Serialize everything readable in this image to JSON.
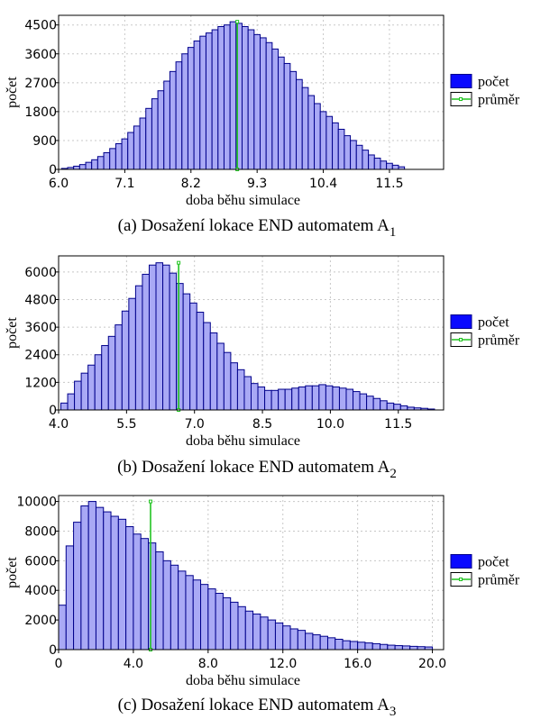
{
  "figures": [
    {
      "caption_prefix": "(a) Dosažení lokace END automatem A",
      "caption_sub": "1",
      "chart_data": {
        "type": "bar",
        "xlabel": "doba běhu simulace",
        "ylabel": "počet",
        "xlim": [
          6.0,
          12.4
        ],
        "ylim": [
          0,
          4800
        ],
        "xticks": [
          "6.0",
          "7.1",
          "8.2",
          "9.3",
          "10.4",
          "11.5"
        ],
        "yticks": [
          "0",
          "900",
          "1800",
          "2700",
          "3600",
          "4500"
        ],
        "bin_start": 6.05,
        "bin_width": 0.1,
        "values": [
          30,
          60,
          100,
          150,
          220,
          300,
          400,
          520,
          650,
          800,
          950,
          1150,
          1350,
          1600,
          1900,
          2200,
          2450,
          2750,
          3050,
          3350,
          3600,
          3800,
          4000,
          4150,
          4250,
          4350,
          4450,
          4500,
          4600,
          4550,
          4450,
          4350,
          4200,
          4100,
          3950,
          3750,
          3500,
          3300,
          3050,
          2800,
          2550,
          2300,
          2050,
          1800,
          1650,
          1450,
          1250,
          1050,
          900,
          750,
          600,
          450,
          350,
          260,
          190,
          130,
          80
        ],
        "mean": 8.97,
        "mean_top": 4600,
        "legend": [
          "počet",
          "průměr"
        ],
        "legend_position": "right",
        "grid": true
      }
    },
    {
      "caption_prefix": "(b) Dosažení lokace END automatem A",
      "caption_sub": "2",
      "chart_data": {
        "type": "bar",
        "xlabel": "doba běhu simulace",
        "ylabel": "počet",
        "xlim": [
          4.0,
          12.5
        ],
        "ylim": [
          0,
          6700
        ],
        "xticks": [
          "4.0",
          "5.5",
          "7.0",
          "8.5",
          "10.0",
          "11.5"
        ],
        "yticks": [
          "0",
          "1200",
          "2400",
          "3600",
          "4800",
          "6000"
        ],
        "bin_start": 4.05,
        "bin_width": 0.15,
        "values": [
          300,
          700,
          1250,
          1600,
          1950,
          2400,
          2800,
          3200,
          3700,
          4300,
          4850,
          5400,
          5900,
          6300,
          6400,
          6300,
          5950,
          5500,
          5050,
          4650,
          4250,
          3800,
          3350,
          2900,
          2500,
          2050,
          1750,
          1450,
          1150,
          1000,
          850,
          850,
          900,
          900,
          950,
          1000,
          1050,
          1050,
          1100,
          1050,
          1000,
          950,
          900,
          800,
          700,
          600,
          500,
          400,
          300,
          250,
          180,
          120,
          90,
          70,
          40
        ],
        "mean": 6.65,
        "mean_top": 6400,
        "legend": [
          "počet",
          "průměr"
        ],
        "legend_position": "right",
        "grid": true
      }
    },
    {
      "caption_prefix": "(c) Dosažení lokace END automatem A",
      "caption_sub": "3",
      "chart_data": {
        "type": "bar",
        "xlabel": "doba běhu simulace",
        "ylabel": "počet",
        "xlim": [
          0,
          20.6
        ],
        "ylim": [
          0,
          10400
        ],
        "xticks": [
          "0",
          "4.0",
          "8.0",
          "12.0",
          "16.0",
          "20.0"
        ],
        "yticks": [
          "0",
          "2000",
          "4000",
          "6000",
          "8000",
          "10000"
        ],
        "bin_start": 0,
        "bin_width": 0.4,
        "values": [
          3000,
          7000,
          8600,
          9700,
          10000,
          9600,
          9300,
          9000,
          8800,
          8300,
          7800,
          7500,
          7200,
          6600,
          6000,
          5700,
          5300,
          5000,
          4700,
          4400,
          4100,
          3800,
          3500,
          3200,
          2900,
          2600,
          2400,
          2200,
          2000,
          1800,
          1600,
          1400,
          1300,
          1100,
          1000,
          900,
          800,
          700,
          600,
          550,
          500,
          450,
          400,
          350,
          300,
          270,
          250,
          220,
          200,
          180
        ],
        "mean": 4.92,
        "mean_top": 10000,
        "legend": [
          "počet",
          "průměr"
        ],
        "legend_position": "right",
        "grid": true
      }
    }
  ],
  "colors": {
    "bar_fill": "#a9a9f5",
    "bar_edge": "#00008b",
    "legend_count": "#0a0aff",
    "mean_line": "#21c421"
  }
}
